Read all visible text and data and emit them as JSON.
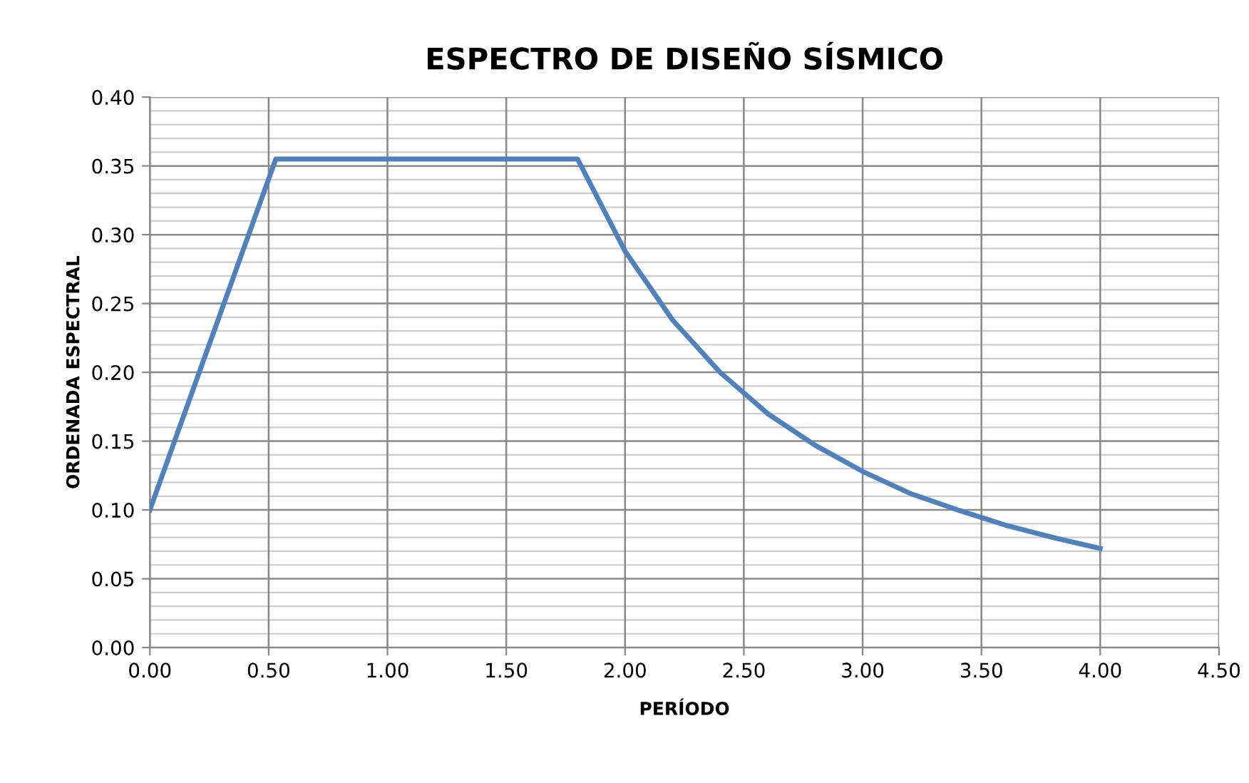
{
  "chart_data": {
    "type": "line",
    "title": "ESPECTRO DE DISEÑO SÍSMICO",
    "xlabel": "PERÍODO",
    "ylabel": "ORDENADA ESPECTRAL",
    "x": [
      0,
      0.53,
      1.8,
      2.0,
      2.2,
      2.4,
      2.6,
      2.8,
      3.0,
      3.2,
      3.4,
      3.6,
      3.8,
      4.0
    ],
    "series": [
      {
        "color": "#4f81bd",
        "values": [
          0.1,
          0.355,
          0.355,
          0.288,
          0.238,
          0.2,
          0.17,
          0.147,
          0.128,
          0.112,
          0.1,
          0.089,
          0.08,
          0.072
        ]
      }
    ],
    "xlim": [
      0,
      4.5
    ],
    "xticks": [
      {
        "value": 0,
        "label": "0.00"
      },
      {
        "value": 0.5,
        "label": "0.50"
      },
      {
        "value": 1,
        "label": "1.00"
      },
      {
        "value": 1.5,
        "label": "1.50"
      },
      {
        "value": 2,
        "label": "2.00"
      },
      {
        "value": 2.5,
        "label": "2.50"
      },
      {
        "value": 3,
        "label": "3.00"
      },
      {
        "value": 3.5,
        "label": "3.50"
      },
      {
        "value": 4,
        "label": "4.00"
      },
      {
        "value": 4.5,
        "label": "4.50"
      }
    ],
    "ylim": [
      0,
      0.4
    ],
    "yticks": [
      {
        "value": 0,
        "label": "0.00"
      },
      {
        "value": 0.05,
        "label": "0.05"
      },
      {
        "value": 0.1,
        "label": "0.10"
      },
      {
        "value": 0.15,
        "label": "0.15"
      },
      {
        "value": 0.2,
        "label": "0.20"
      },
      {
        "value": 0.25,
        "label": "0.25"
      },
      {
        "value": 0.3,
        "label": "0.30"
      },
      {
        "value": 0.35,
        "label": "0.35"
      },
      {
        "value": 0.4,
        "label": "0.40"
      }
    ],
    "grid": true,
    "marker": "none",
    "line_style": "solid"
  }
}
